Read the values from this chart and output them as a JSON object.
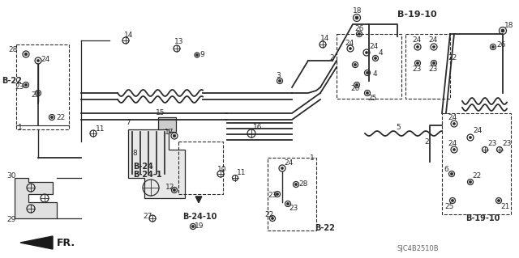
{
  "bg_color": "#ffffff",
  "lc": "#2a2a2a",
  "lc_gray": "#888888",
  "ref_code": "SJC4B2510B",
  "fig_width": 6.4,
  "fig_height": 3.19,
  "dpi": 100,
  "labels": {
    "B22_left": "B-22",
    "B24": "B-24",
    "B241": "B-24-1",
    "B2410": "B-24-10",
    "B1910_top": "B-19-10",
    "B1910_right": "B-19-10",
    "B22_center": "B-22",
    "FR": "FR."
  }
}
